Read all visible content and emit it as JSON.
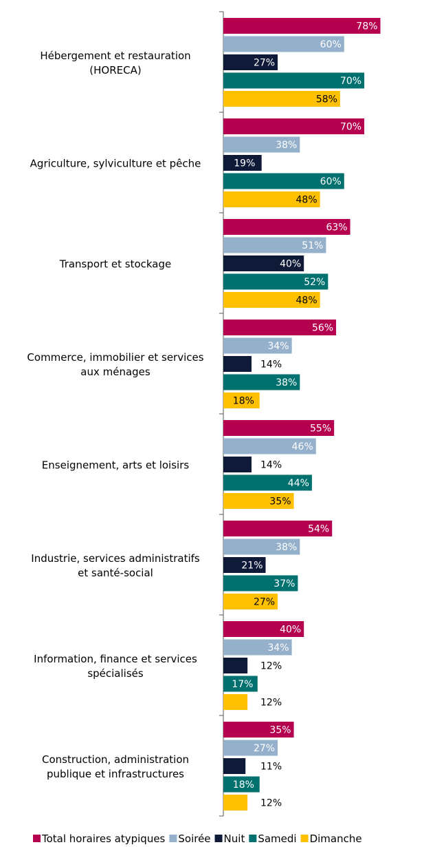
{
  "chart_data": {
    "type": "bar",
    "orientation": "horizontal",
    "categories": [
      [
        "Hébergement et restauration",
        "(HORECA)"
      ],
      [
        "Agriculture, sylviculture et pêche"
      ],
      [
        "Transport et stockage"
      ],
      [
        "Commerce, immobilier et services",
        "aux ménages"
      ],
      [
        "Enseignement, arts et loisirs"
      ],
      [
        "Industrie, services administratifs",
        "et santé-social"
      ],
      [
        "Information, finance et services",
        "spécialisés"
      ],
      [
        "Construction, administration",
        "publique et infrastructures"
      ]
    ],
    "series": [
      {
        "name": "Total horaires atypiques",
        "color": "#B5004F",
        "values": [
          78,
          70,
          63,
          56,
          55,
          54,
          40,
          35
        ],
        "label_color": "#ffffff"
      },
      {
        "name": "Soirée",
        "color": "#94B0CB",
        "values": [
          60,
          38,
          51,
          34,
          46,
          38,
          34,
          27
        ],
        "label_color": "#ffffff"
      },
      {
        "name": "Nuit",
        "color": "#0E1A38",
        "values": [
          27,
          19,
          40,
          14,
          14,
          21,
          12,
          11
        ],
        "label_color": "#ffffff"
      },
      {
        "name": "Samedi",
        "color": "#00716F",
        "values": [
          70,
          60,
          52,
          38,
          44,
          37,
          17,
          18
        ],
        "label_color": "#ffffff"
      },
      {
        "name": "Dimanche",
        "color": "#FFC000",
        "values": [
          58,
          48,
          48,
          18,
          35,
          27,
          12,
          12
        ],
        "label_color": "#000000"
      }
    ],
    "value_suffix": "%",
    "xlim": [
      0,
      100
    ],
    "legend_position": "bottom",
    "grid": false
  }
}
